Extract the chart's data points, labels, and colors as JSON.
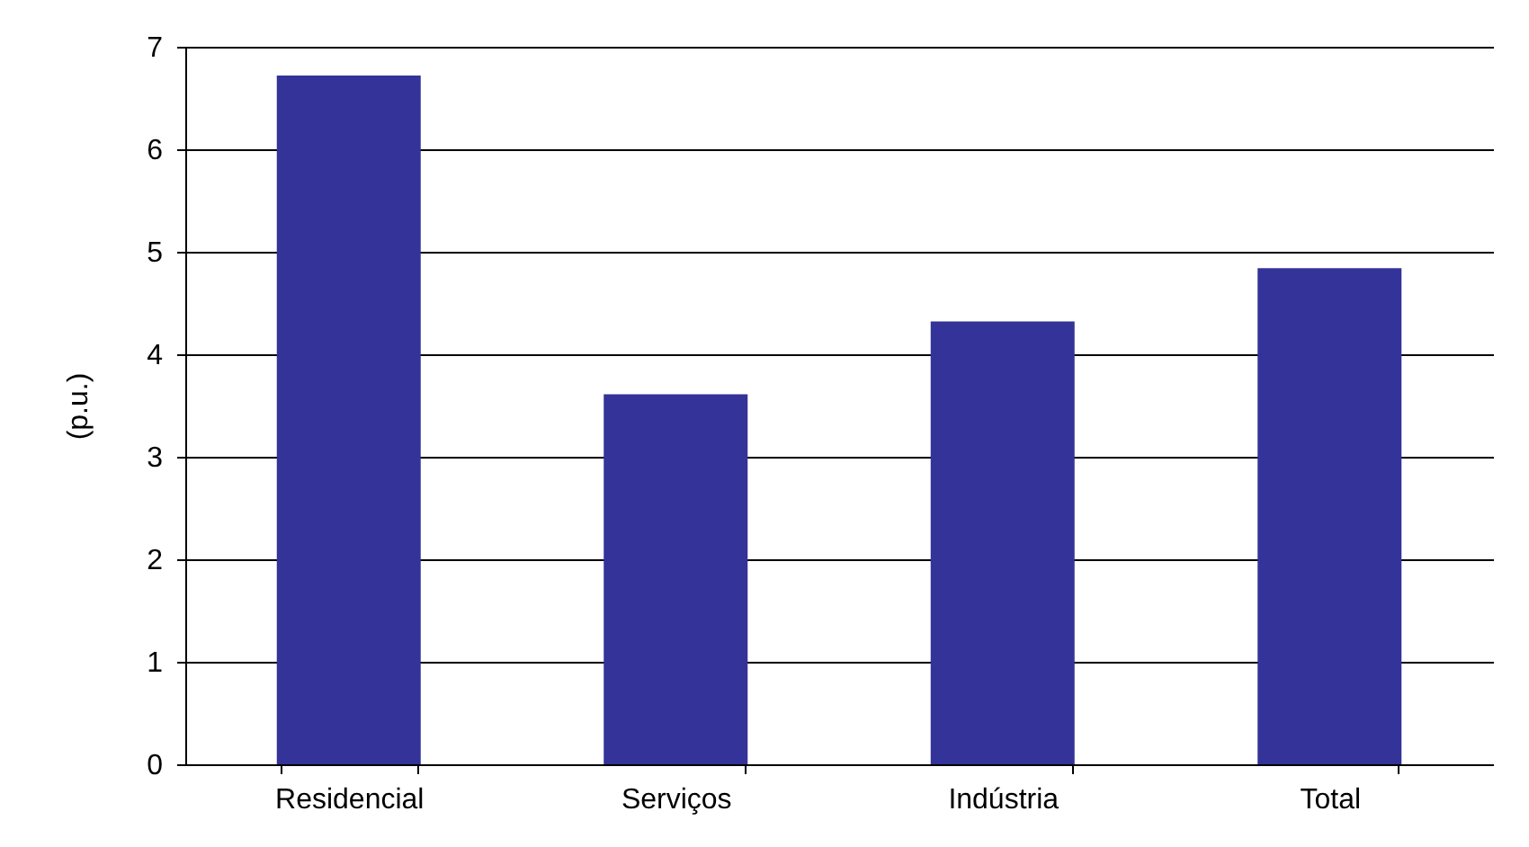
{
  "chart_data": {
    "type": "bar",
    "ylabel": "(p.u.)",
    "categories": [
      "Residencial",
      "Serviços",
      "Indústria",
      "Total"
    ],
    "values": [
      6.72,
      3.61,
      4.32,
      4.84
    ],
    "color": "#333399",
    "ylim": [
      0,
      7
    ],
    "yticks": [
      0,
      1,
      2,
      3,
      4,
      5,
      6,
      7
    ],
    "grid": "y"
  }
}
